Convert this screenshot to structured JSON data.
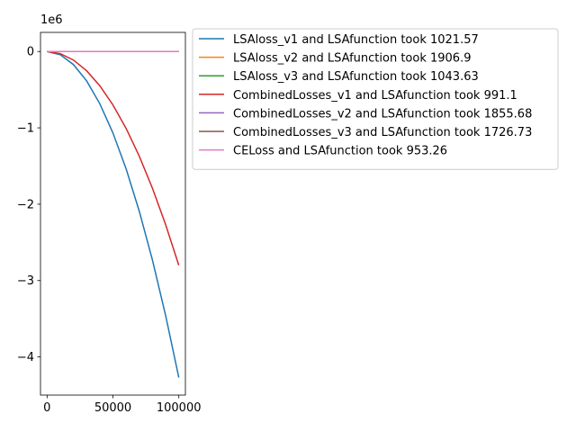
{
  "chart_data": {
    "type": "line",
    "title": "",
    "xlabel": "",
    "ylabel": "",
    "y_offset_label": "1e6",
    "xlim": [
      -5000,
      105000
    ],
    "ylim": [
      -4.5,
      0.25
    ],
    "x_ticks": [
      0,
      50000,
      100000
    ],
    "x_tick_labels": [
      "0",
      "50000",
      "100000"
    ],
    "y_ticks": [
      0,
      -1,
      -2,
      -3,
      -4
    ],
    "y_tick_labels": [
      "0",
      "−1",
      "−2",
      "−3",
      "−4"
    ],
    "grid": false,
    "legend_position": "outside-upper-right",
    "x": [
      0,
      10000,
      20000,
      30000,
      40000,
      50000,
      60000,
      70000,
      80000,
      90000,
      100000
    ],
    "series": [
      {
        "name": "LSAloss_v1 and LSAfunction took 1021.57",
        "color": "#1f77b4",
        "values": [
          0,
          -0.0427,
          -0.171,
          -0.3843,
          -0.6832,
          -1.0675,
          -1.5372,
          -2.0923,
          -2.7328,
          -3.4587,
          -4.27
        ]
      },
      {
        "name": "LSAloss_v2 and LSAfunction took 1906.9",
        "color": "#ff7f0e",
        "values": [
          0,
          0,
          0,
          0,
          0,
          0,
          0,
          0,
          0,
          0,
          0
        ]
      },
      {
        "name": "LSAloss_v3 and LSAfunction took 1043.63",
        "color": "#2ca02c",
        "values": [
          0,
          0,
          0,
          0,
          0,
          0,
          0,
          0,
          0,
          0,
          0
        ]
      },
      {
        "name": "CombinedLosses_v1 and LSAfunction took 991.1",
        "color": "#d62728",
        "values": [
          0,
          -0.028,
          -0.112,
          -0.252,
          -0.448,
          -0.7,
          -1.008,
          -1.372,
          -1.792,
          -2.268,
          -2.8
        ]
      },
      {
        "name": "CombinedLosses_v2 and LSAfunction took 1855.68",
        "color": "#9467bd",
        "values": [
          0,
          0,
          0,
          0,
          0,
          0,
          0,
          0,
          0,
          0,
          0
        ]
      },
      {
        "name": "CombinedLosses_v3 and LSAfunction took 1726.73",
        "color": "#8c564b",
        "values": [
          0,
          0,
          0,
          0,
          0,
          0,
          0,
          0,
          0,
          0,
          0
        ]
      },
      {
        "name": "CELoss and LSAfunction took 953.26",
        "color": "#e377c2",
        "values": [
          0,
          0,
          0,
          0,
          0,
          0,
          0,
          0,
          0,
          0,
          0
        ]
      }
    ]
  }
}
